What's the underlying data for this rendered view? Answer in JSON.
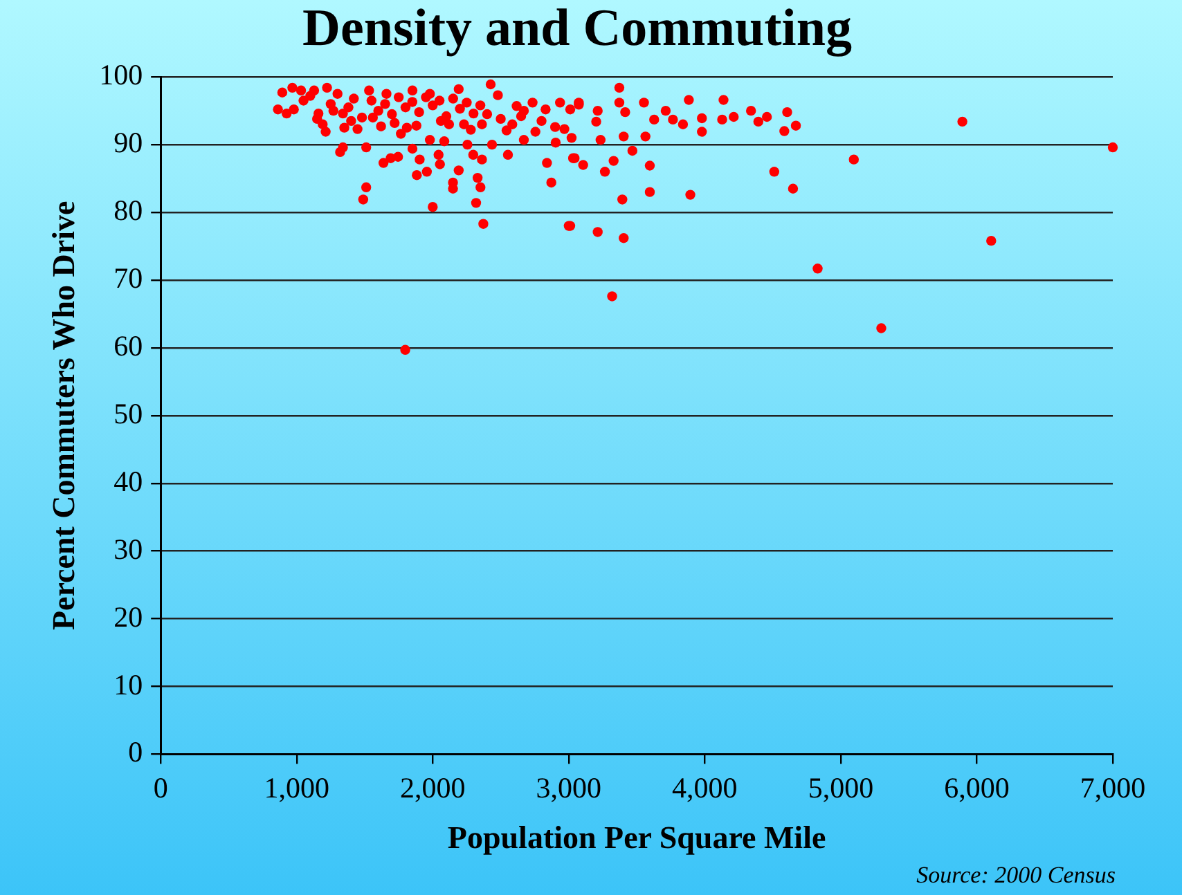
{
  "chart_data": {
    "type": "scatter",
    "title": "Density and Commuting",
    "xlabel": "Population Per Square Mile",
    "ylabel": "Percent Commuters Who Drive",
    "annotations": [
      "Source: 2000 Census"
    ],
    "series": [
      {
        "color": "#ff0000",
        "x": [
          862,
          979,
          894,
          926,
          968,
          1032,
          1128,
          1223,
          1160,
          1191,
          1213,
          1340,
          1447,
          1532,
          1660,
          1851,
          1979,
          2191,
          2426,
          2479,
          2617,
          2734,
          2936,
          3074,
          2968,
          2755,
          2670,
          2543,
          2436,
          2362,
          2255,
          2085,
          1979,
          1766,
          1511,
          1340,
          1319,
          1638,
          1691,
          1745,
          1851,
          1904,
          2043,
          2053,
          1883,
          1957,
          2191,
          2149,
          2149,
          2298,
          2362,
          2330,
          2351,
          2319,
          2372,
          2000,
          1511,
          1489,
          1798,
          2553,
          2840,
          2872,
          2904,
          3043,
          3000,
          3213,
          2830,
          2585,
          2670,
          3372,
          3372,
          3553,
          3883,
          4138,
          4340,
          4606,
          4670,
          4585,
          4457,
          4394,
          4213,
          4128,
          3979,
          3979,
          3840,
          3766,
          3713,
          3628,
          3404,
          3564,
          3415,
          3234,
          3202,
          3074,
          3011,
          3021,
          3213,
          3319,
          3011,
          3404,
          3394,
          3596,
          3894,
          4511,
          4649,
          3596,
          3266,
          3330,
          3032,
          3106,
          3468,
          5894,
          7000,
          5096,
          6106,
          4830,
          5298,
          1050,
          1100,
          1250,
          1300,
          1380,
          1420,
          1480,
          1550,
          1600,
          1650,
          1700,
          1750,
          1800,
          1850,
          1900,
          1950,
          2000,
          2050,
          2100,
          2150,
          2200,
          2250,
          2300,
          2350,
          1150,
          1270,
          1400,
          1560,
          1720,
          1880,
          2060,
          2230,
          2400,
          1350,
          1620,
          1810,
          2120,
          2280,
          2500,
          2650,
          2800,
          2900
        ],
        "values": [
          95.2,
          95.2,
          97.7,
          94.6,
          98.4,
          98,
          98,
          98.4,
          94.6,
          93,
          91.9,
          94.6,
          92.3,
          98,
          97.5,
          98,
          97.5,
          98.2,
          98.9,
          97.3,
          95.7,
          96.2,
          96.2,
          95.9,
          92.3,
          91.9,
          90.7,
          92.1,
          90,
          93,
          90,
          90.5,
          90.7,
          91.6,
          89.6,
          89.6,
          88.9,
          87.3,
          88,
          88.2,
          89.4,
          87.8,
          88.5,
          87.1,
          85.5,
          86,
          86.2,
          84.4,
          83.5,
          88.5,
          87.8,
          85.1,
          83.7,
          81.4,
          78.3,
          80.8,
          83.7,
          81.9,
          59.7,
          88.5,
          87.3,
          84.4,
          90.3,
          88,
          78,
          77.1,
          95.2,
          93,
          95,
          98.4,
          96.2,
          96.2,
          96.6,
          96.6,
          95,
          94.8,
          92.8,
          92,
          94.1,
          93.4,
          94.1,
          93.7,
          93.9,
          91.9,
          93,
          93.7,
          95,
          93.7,
          91.2,
          91.2,
          94.8,
          90.7,
          93.4,
          96.2,
          95.2,
          91,
          95,
          67.6,
          78,
          76.2,
          81.9,
          83,
          82.6,
          86,
          83.5,
          86.9,
          86,
          87.6,
          88,
          87,
          89.1,
          93.4,
          89.6,
          87.8,
          75.8,
          71.7,
          62.9,
          96.5,
          97.2,
          96,
          97.5,
          95.5,
          96.8,
          94,
          96.5,
          95,
          96,
          94.5,
          97,
          95.5,
          96.3,
          94.8,
          97,
          95.8,
          96.5,
          94.2,
          96.8,
          95.3,
          96.2,
          94.6,
          95.8,
          93.8,
          95,
          93.5,
          94,
          93.2,
          92.8,
          93.5,
          93,
          94.5,
          92.5,
          92.7,
          92.5,
          93,
          92.2,
          93.8,
          94.2,
          93.5,
          92.6
        ]
      }
    ],
    "xlim": [
      0,
      7000
    ],
    "xticks": [
      {
        "value": 0,
        "label": "0"
      },
      {
        "value": 1000,
        "label": "1,000"
      },
      {
        "value": 2000,
        "label": "2,000"
      },
      {
        "value": 3000,
        "label": "3,000"
      },
      {
        "value": 4000,
        "label": "4,000"
      },
      {
        "value": 5000,
        "label": "5,000"
      },
      {
        "value": 6000,
        "label": "6,000"
      },
      {
        "value": 7000,
        "label": "7,000"
      }
    ],
    "ylim": [
      0,
      100
    ],
    "yticks": [
      0,
      10,
      20,
      30,
      40,
      50,
      60,
      70,
      80,
      90,
      100
    ],
    "grid": "y",
    "marker": "circle",
    "legend": false
  }
}
